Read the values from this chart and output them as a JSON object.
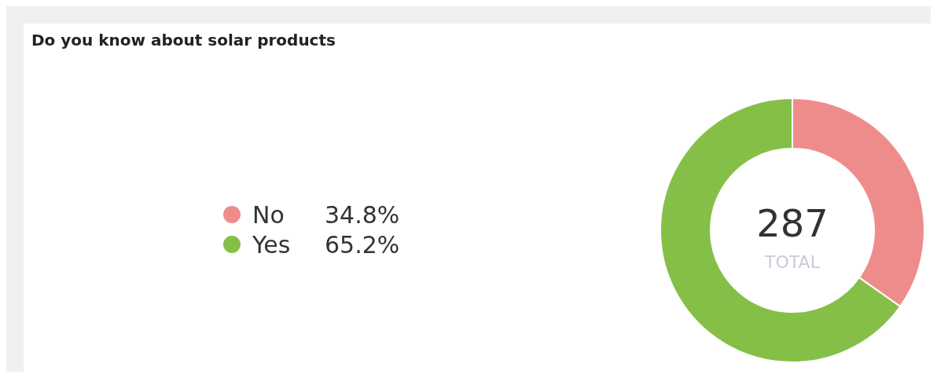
{
  "chart_data": {
    "type": "donut",
    "title": "Do you know about solar products",
    "categories": [
      "No",
      "Yes"
    ],
    "values": [
      34.8,
      65.2
    ],
    "colors": [
      "#ee8c8c",
      "#85bf48"
    ],
    "annotations": [
      "287",
      "TOTAL"
    ],
    "value_labels": [
      "34.8%",
      "65.2%"
    ],
    "legend": "left"
  }
}
